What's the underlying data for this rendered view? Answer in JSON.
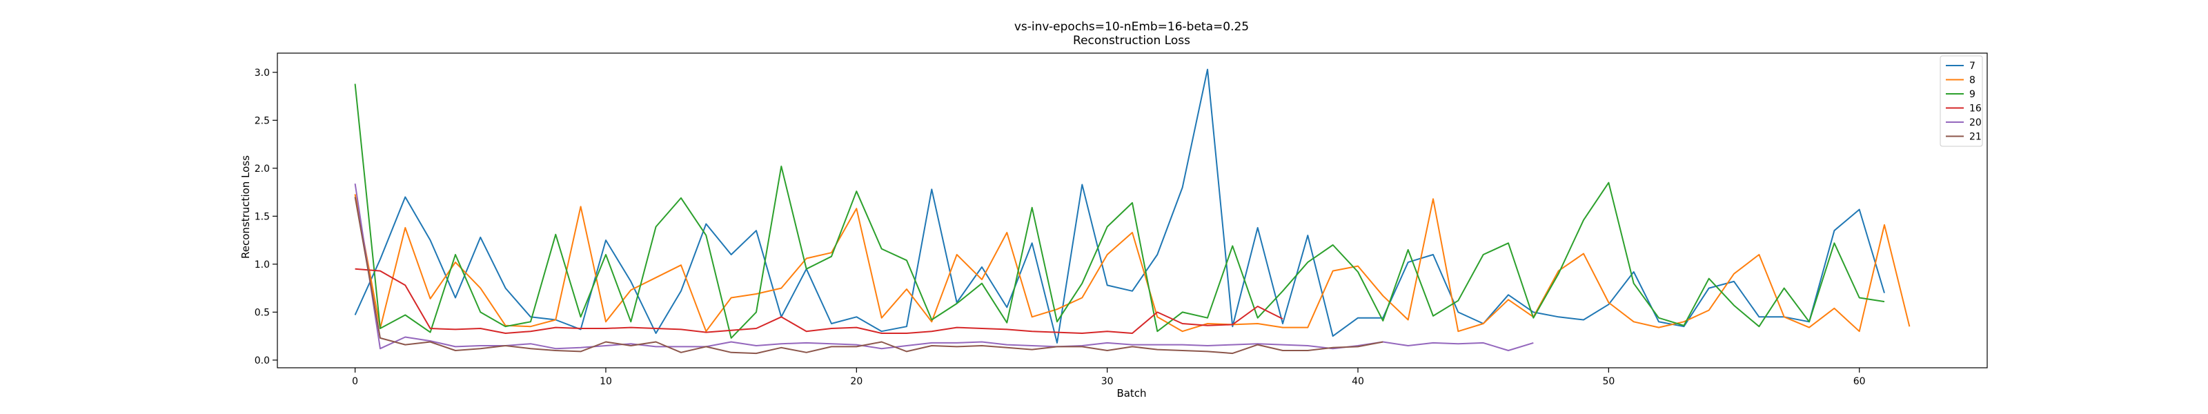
{
  "chart_data": {
    "type": "line",
    "title": "vs-inv-epochs=10-nEmb=16-beta=0.25",
    "subtitle": "Reconstruction Loss",
    "xlabel": "Batch",
    "ylabel": "Reconstruction Loss",
    "xlim": [
      -3.1,
      65.1
    ],
    "ylim": [
      -0.08,
      3.2
    ],
    "xticks": [
      0,
      10,
      20,
      30,
      40,
      50,
      60
    ],
    "yticks": [
      0.0,
      0.5,
      1.0,
      1.5,
      2.0,
      2.5,
      3.0
    ],
    "xtick_labels": [
      "0",
      "10",
      "20",
      "30",
      "40",
      "50",
      "60"
    ],
    "ytick_labels": [
      "0.0",
      "0.5",
      "1.0",
      "1.5",
      "2.0",
      "2.5",
      "3.0"
    ],
    "grid": false,
    "legend_position": "top-right",
    "series": [
      {
        "name": "7",
        "color": "#1f77b4",
        "values": [
          0.47,
          1.05,
          1.7,
          1.25,
          0.65,
          1.28,
          0.75,
          0.45,
          0.42,
          0.32,
          1.25,
          0.82,
          0.28,
          0.72,
          1.42,
          1.1,
          1.35,
          0.45,
          0.95,
          0.38,
          0.45,
          0.3,
          0.35,
          1.78,
          0.6,
          0.97,
          0.55,
          1.22,
          0.18,
          1.83,
          0.78,
          0.72,
          1.1,
          1.8,
          3.03,
          0.35,
          1.38,
          0.38,
          1.3,
          0.25,
          0.44,
          0.44,
          1.02,
          1.1,
          0.5,
          0.38,
          0.68,
          0.5,
          0.45,
          0.42,
          0.58,
          0.92,
          0.4,
          0.35,
          0.75,
          0.82,
          0.45,
          0.45,
          0.4,
          1.35,
          1.57,
          0.7
        ]
      },
      {
        "name": "8",
        "color": "#ff7f0e",
        "values": [
          1.73,
          0.33,
          1.38,
          0.64,
          1.02,
          0.75,
          0.36,
          0.35,
          0.42,
          1.6,
          0.4,
          0.73,
          0.86,
          0.99,
          0.3,
          0.65,
          0.69,
          0.75,
          1.06,
          1.12,
          1.58,
          0.44,
          0.74,
          0.4,
          1.1,
          0.84,
          1.33,
          0.45,
          0.53,
          0.65,
          1.1,
          1.33,
          0.45,
          0.3,
          0.38,
          0.37,
          0.38,
          0.34,
          0.34,
          0.93,
          0.98,
          0.67,
          0.42,
          1.68,
          0.3,
          0.38,
          0.63,
          0.45,
          0.93,
          1.11,
          0.6,
          0.4,
          0.34,
          0.4,
          0.52,
          0.9,
          1.1,
          0.45,
          0.34,
          0.54,
          0.3,
          1.41,
          0.35
        ]
      },
      {
        "name": "9",
        "color": "#2ca02c",
        "values": [
          2.88,
          0.33,
          0.47,
          0.29,
          1.1,
          0.5,
          0.35,
          0.4,
          1.31,
          0.45,
          1.1,
          0.4,
          1.39,
          1.69,
          1.3,
          0.23,
          0.5,
          2.02,
          0.95,
          1.08,
          1.76,
          1.16,
          1.04,
          0.42,
          0.59,
          0.8,
          0.39,
          1.59,
          0.4,
          0.8,
          1.39,
          1.64,
          0.3,
          0.5,
          0.44,
          1.19,
          0.44,
          0.72,
          1.02,
          1.2,
          0.92,
          0.41,
          1.15,
          0.46,
          0.62,
          1.1,
          1.22,
          0.44,
          0.9,
          1.46,
          1.85,
          0.8,
          0.44,
          0.36,
          0.85,
          0.57,
          0.35,
          0.75,
          0.4,
          1.22,
          0.65,
          0.61
        ]
      },
      {
        "name": "16",
        "color": "#d62728",
        "values": [
          0.95,
          0.93,
          0.78,
          0.33,
          0.32,
          0.33,
          0.28,
          0.3,
          0.34,
          0.33,
          0.33,
          0.34,
          0.33,
          0.32,
          0.29,
          0.31,
          0.33,
          0.45,
          0.3,
          0.33,
          0.34,
          0.28,
          0.28,
          0.3,
          0.34,
          0.33,
          0.32,
          0.3,
          0.29,
          0.28,
          0.3,
          0.28,
          0.5,
          0.38,
          0.36,
          0.37,
          0.56,
          0.43
        ]
      },
      {
        "name": "20",
        "color": "#9467bd",
        "values": [
          1.84,
          0.12,
          0.24,
          0.2,
          0.14,
          0.15,
          0.15,
          0.17,
          0.12,
          0.13,
          0.15,
          0.17,
          0.14,
          0.14,
          0.14,
          0.19,
          0.15,
          0.17,
          0.18,
          0.17,
          0.16,
          0.12,
          0.15,
          0.18,
          0.18,
          0.19,
          0.16,
          0.15,
          0.14,
          0.15,
          0.18,
          0.16,
          0.16,
          0.16,
          0.15,
          0.16,
          0.17,
          0.16,
          0.15,
          0.12,
          0.15,
          0.19,
          0.15,
          0.18,
          0.17,
          0.18,
          0.1,
          0.18
        ]
      },
      {
        "name": "21",
        "color": "#8c564b",
        "values": [
          1.7,
          0.23,
          0.16,
          0.19,
          0.1,
          0.12,
          0.15,
          0.12,
          0.1,
          0.09,
          0.19,
          0.15,
          0.19,
          0.08,
          0.14,
          0.08,
          0.07,
          0.13,
          0.08,
          0.14,
          0.14,
          0.19,
          0.09,
          0.15,
          0.14,
          0.15,
          0.13,
          0.11,
          0.14,
          0.14,
          0.1,
          0.14,
          0.11,
          0.1,
          0.09,
          0.07,
          0.16,
          0.1,
          0.1,
          0.13,
          0.14,
          0.19
        ]
      }
    ]
  }
}
